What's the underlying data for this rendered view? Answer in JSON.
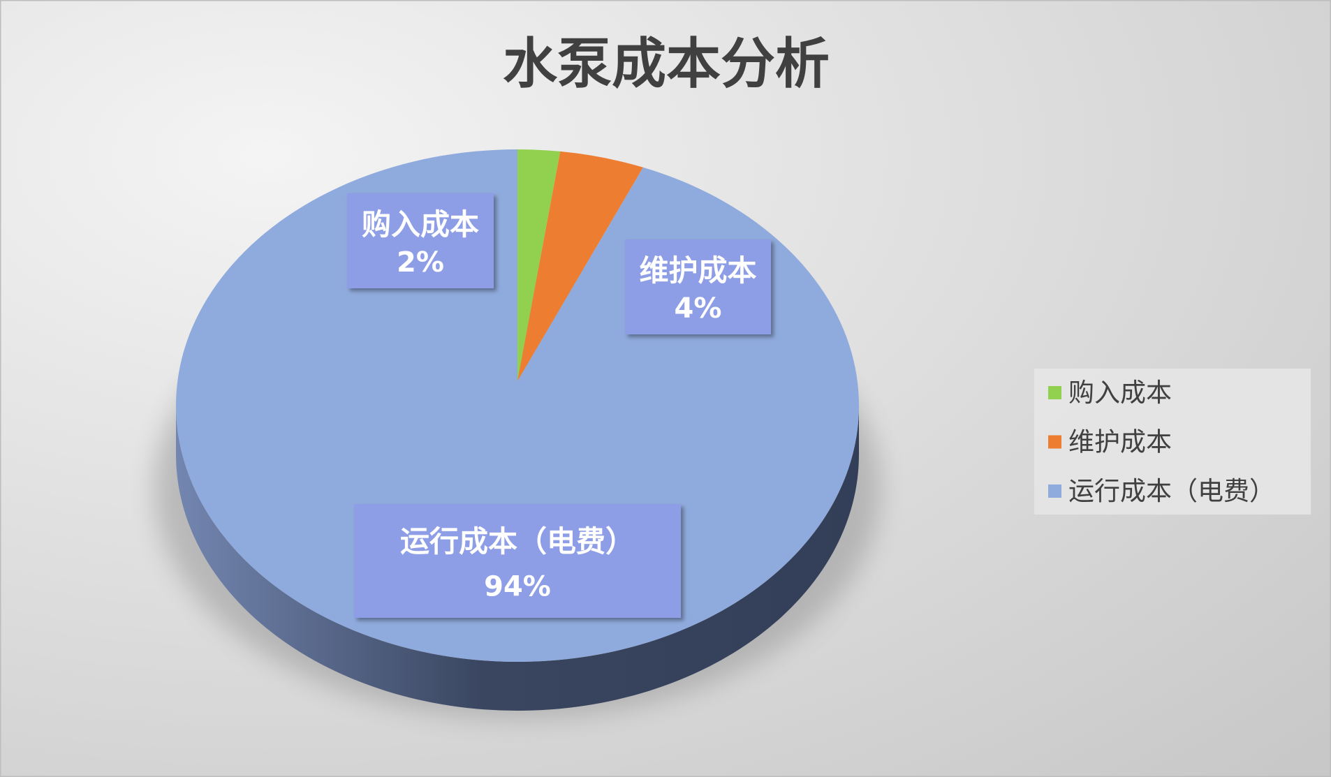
{
  "chart_data": {
    "type": "pie",
    "style": "3d",
    "title": "水泵成本分析",
    "categories": [
      "购入成本",
      "维护成本",
      "运行成本（电费）"
    ],
    "values": [
      2,
      4,
      94
    ],
    "unit": "%",
    "data_labels": [
      {
        "name": "购入成本",
        "value": "2%"
      },
      {
        "name": "维护成本",
        "value": "4%"
      },
      {
        "name": "运行成本（电费）",
        "value": "94%"
      }
    ],
    "colors": [
      "#92d050",
      "#ed7d31",
      "#8faadc"
    ],
    "label_box_color": "#8e9ee6",
    "legend": {
      "placement": "right",
      "items": [
        "购入成本",
        "维护成本",
        "运行成本（电费）"
      ]
    }
  }
}
